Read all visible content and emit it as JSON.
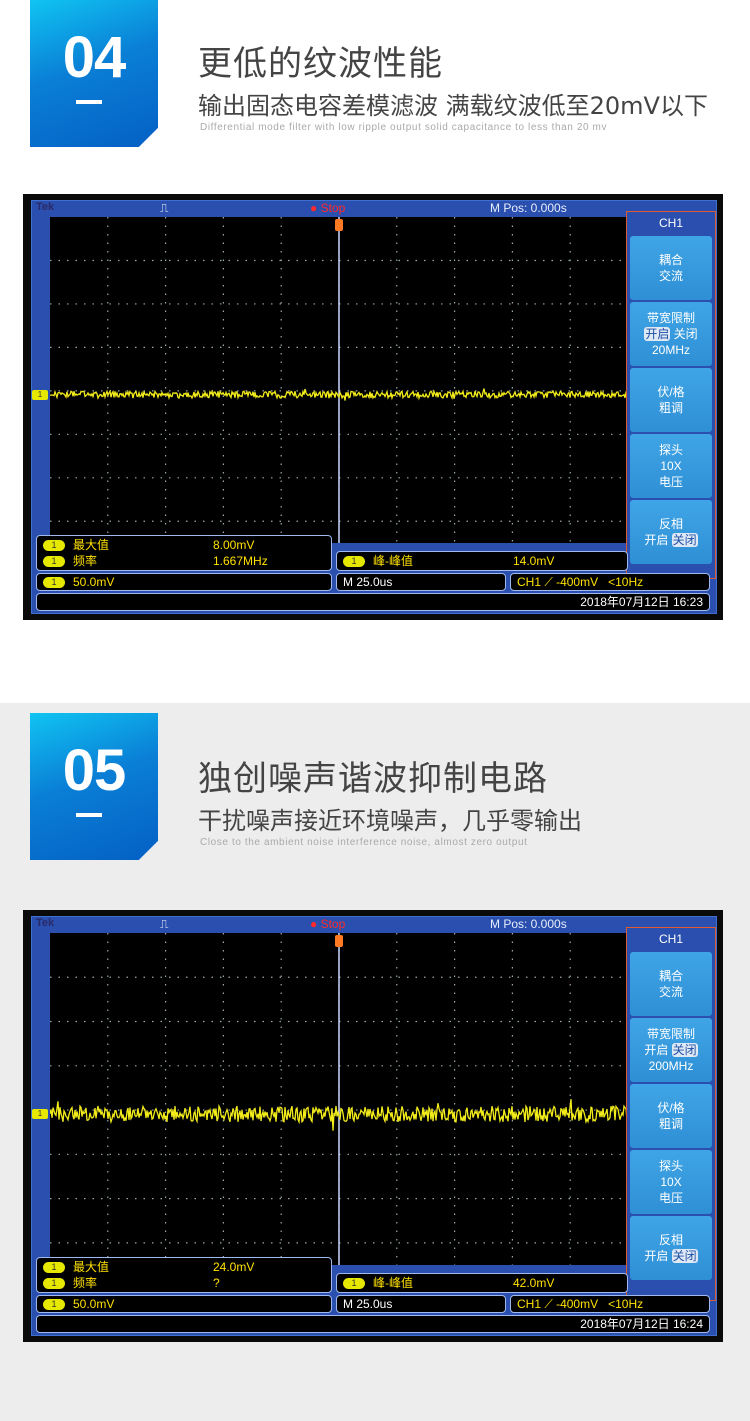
{
  "sections": [
    {
      "number": "04",
      "title": "更低的纹波性能",
      "subtitle": "输出固态电容差模滤波 满载纹波低至20mV以下",
      "subtitle_en": "Differential mode filter with low ripple output solid capacitance to less than 20 mv",
      "scope": {
        "brand": "Tek",
        "status": "Stop",
        "mpos": "M Pos: 0.000s",
        "menu": {
          "header": "CH1",
          "coupling": [
            "耦合",
            "交流"
          ],
          "bw_title": "带宽限制",
          "bw_on": "开启",
          "bw_off": "关闭",
          "bw_value": "20MHz",
          "vdiv": [
            "伏/格",
            "粗调"
          ],
          "probe": [
            "探头",
            "10X",
            "电压"
          ],
          "invert_title": "反相",
          "invert_on": "开启",
          "invert_off": "关闭"
        },
        "measurements": {
          "max_label": "最大值",
          "max_value": "8.00mV",
          "freq_label": "频率",
          "freq_value": "1.667MHz",
          "pp_label": "峰-峰值",
          "pp_value": "14.0mV"
        },
        "channel_chip": "1",
        "volts_div": "50.0mV",
        "time_div": "M 25.0us",
        "trigger": "CH1 ⟋ -400mV",
        "trigger_freq": "<10Hz",
        "timestamp": "2018年07月12日 16:23",
        "trace_color": "#f2ec1a"
      }
    },
    {
      "number": "05",
      "title": "独创噪声谐波抑制电路",
      "subtitle": "干扰噪声接近环境噪声，几乎零输出",
      "subtitle_en": "Close to the ambient noise interference noise, almost zero output",
      "scope": {
        "brand": "Tek",
        "status": "Stop",
        "mpos": "M Pos: 0.000s",
        "menu": {
          "header": "CH1",
          "coupling": [
            "耦合",
            "交流"
          ],
          "bw_title": "带宽限制",
          "bw_on": "开启",
          "bw_off": "关闭",
          "bw_value": "200MHz",
          "vdiv": [
            "伏/格",
            "粗调"
          ],
          "probe": [
            "探头",
            "10X",
            "电压"
          ],
          "invert_title": "反相",
          "invert_on": "开启",
          "invert_off": "关闭"
        },
        "measurements": {
          "max_label": "最大值",
          "max_value": "24.0mV",
          "freq_label": "频率",
          "freq_value": "?",
          "pp_label": "峰-峰值",
          "pp_value": "42.0mV"
        },
        "channel_chip": "1",
        "volts_div": "50.0mV",
        "time_div": "M 25.0us",
        "trigger": "CH1 ⟋ -400mV",
        "trigger_freq": "<10Hz",
        "timestamp": "2018年07月12日 16:24",
        "trace_color": "#f2ec1a"
      }
    }
  ]
}
